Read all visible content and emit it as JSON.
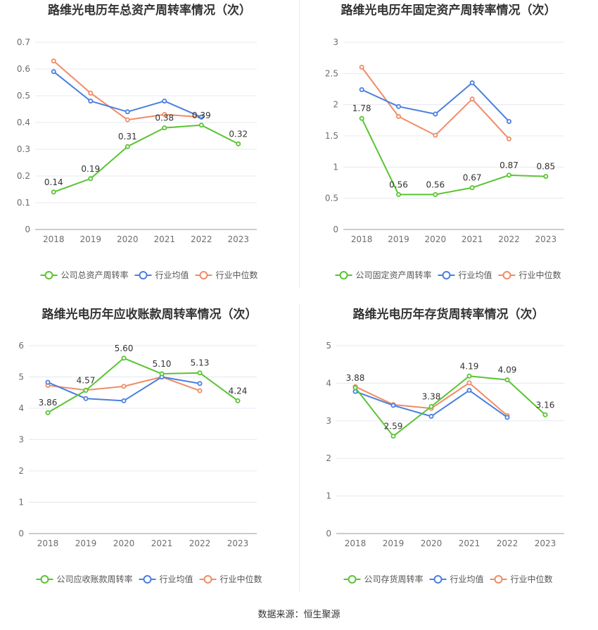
{
  "source": "数据来源：恒生聚源",
  "colors": {
    "company": "#5ac432",
    "avg": "#4a7fe0",
    "median": "#f08c67",
    "grid": "#e6e8ef",
    "axis": "#999999",
    "tick": "#6d6d6d",
    "title": "#333333"
  },
  "legend_labels": [
    "行业均值",
    "行业中位数"
  ],
  "chart_data": [
    {
      "type": "line",
      "title": "路维光电历年总资产周转率情况（次）",
      "categories": [
        "2018",
        "2019",
        "2020",
        "2021",
        "2022",
        "2023"
      ],
      "yticks": [
        "0",
        "0.1",
        "0.2",
        "0.3",
        "0.4",
        "0.5",
        "0.6",
        "0.7"
      ],
      "ylim": [
        0,
        0.7
      ],
      "series": [
        {
          "name": "公司总资产周转率",
          "values": [
            0.14,
            0.19,
            0.31,
            0.38,
            0.39,
            0.32
          ],
          "labels": [
            "0.14",
            "0.19",
            "0.31",
            "0.38",
            "0.39",
            "0.32"
          ]
        },
        {
          "name": "行业均值",
          "values": [
            0.59,
            0.48,
            0.44,
            0.48,
            0.42,
            null
          ]
        },
        {
          "name": "行业中位数",
          "values": [
            0.63,
            0.51,
            0.41,
            0.43,
            0.42,
            null
          ]
        }
      ]
    },
    {
      "type": "line",
      "title": "路维光电历年固定资产周转率情况（次）",
      "categories": [
        "2018",
        "2019",
        "2020",
        "2021",
        "2022",
        "2023"
      ],
      "yticks": [
        "0",
        "0.5",
        "1",
        "1.5",
        "2",
        "2.5",
        "3"
      ],
      "ylim": [
        0,
        3
      ],
      "series": [
        {
          "name": "公司固定资产周转率",
          "values": [
            1.78,
            0.56,
            0.56,
            0.67,
            0.87,
            0.85
          ],
          "labels": [
            "1.78",
            "0.56",
            "0.56",
            "0.67",
            "0.87",
            "0.85"
          ]
        },
        {
          "name": "行业均值",
          "values": [
            2.24,
            1.97,
            1.85,
            2.35,
            1.73,
            null
          ]
        },
        {
          "name": "行业中位数",
          "values": [
            2.6,
            1.81,
            1.51,
            2.09,
            1.45,
            null
          ]
        }
      ]
    },
    {
      "type": "line",
      "title": "路维光电历年应收账款周转率情况（次）",
      "categories": [
        "2018",
        "2019",
        "2020",
        "2021",
        "2022",
        "2023"
      ],
      "yticks": [
        "0",
        "1",
        "2",
        "3",
        "4",
        "5",
        "6"
      ],
      "ylim": [
        0,
        6
      ],
      "series": [
        {
          "name": "公司应收账款周转率",
          "values": [
            3.86,
            4.57,
            5.6,
            5.1,
            5.13,
            4.24
          ],
          "labels": [
            "3.86",
            "4.57",
            "5.60",
            "5.10",
            "5.13",
            "4.24"
          ]
        },
        {
          "name": "行业均值",
          "values": [
            4.83,
            4.31,
            4.24,
            5.0,
            4.79,
            null
          ]
        },
        {
          "name": "行业中位数",
          "values": [
            4.73,
            4.58,
            4.7,
            5.0,
            4.56,
            null
          ]
        }
      ]
    },
    {
      "type": "line",
      "title": "路维光电历年存货周转率情况（次）",
      "categories": [
        "2018",
        "2019",
        "2020",
        "2021",
        "2022",
        "2023"
      ],
      "yticks": [
        "0",
        "1",
        "2",
        "3",
        "4",
        "5"
      ],
      "ylim": [
        0,
        5
      ],
      "series": [
        {
          "name": "公司存货周转率",
          "values": [
            3.88,
            2.59,
            3.38,
            4.19,
            4.09,
            3.16
          ],
          "labels": [
            "3.88",
            "2.59",
            "3.38",
            "4.19",
            "4.09",
            "3.16"
          ]
        },
        {
          "name": "行业均值",
          "values": [
            3.78,
            3.41,
            3.12,
            3.81,
            3.09,
            null
          ]
        },
        {
          "name": "行业中位数",
          "values": [
            3.91,
            3.43,
            3.33,
            4.01,
            3.14,
            null
          ]
        }
      ]
    }
  ]
}
